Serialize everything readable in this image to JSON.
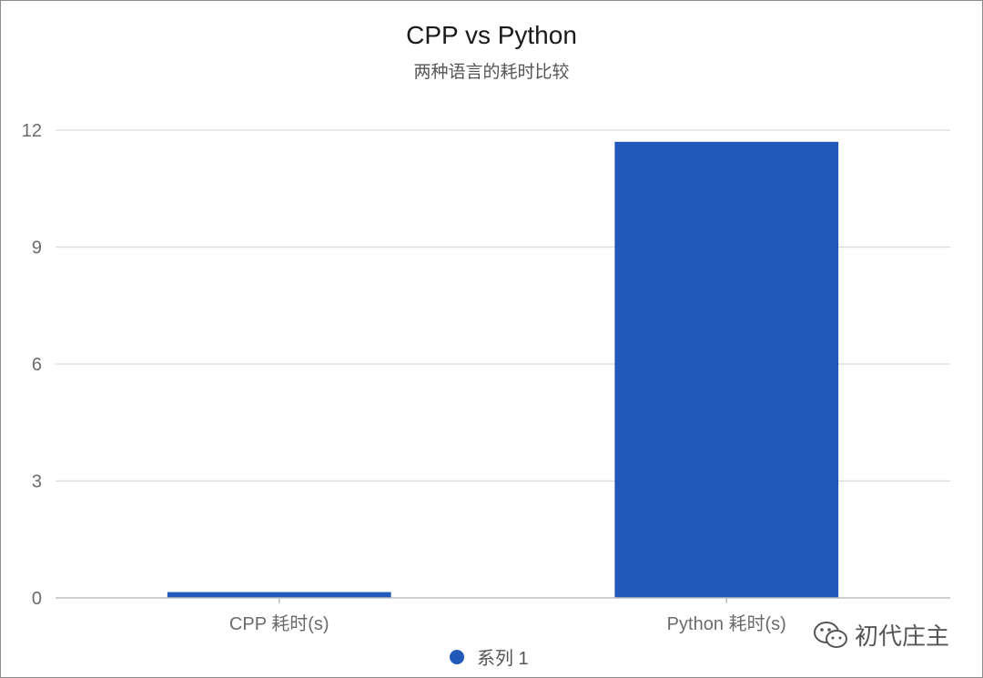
{
  "chart_data": {
    "type": "bar",
    "title": "CPP vs Python",
    "subtitle": "两种语言的耗时比较",
    "categories": [
      "CPP 耗时(s)",
      "Python 耗时(s)"
    ],
    "series": [
      {
        "name": "系列 1",
        "values": [
          0.15,
          11.7
        ],
        "color": "#2159bb"
      }
    ],
    "xlabel": "",
    "ylabel": "",
    "ylim": [
      0,
      12
    ],
    "yticks": [
      0,
      3,
      6,
      9,
      12
    ],
    "grid": true,
    "legend_position": "bottom-center"
  },
  "watermark": {
    "icon": "wechat-icon",
    "text": "初代庄主"
  }
}
